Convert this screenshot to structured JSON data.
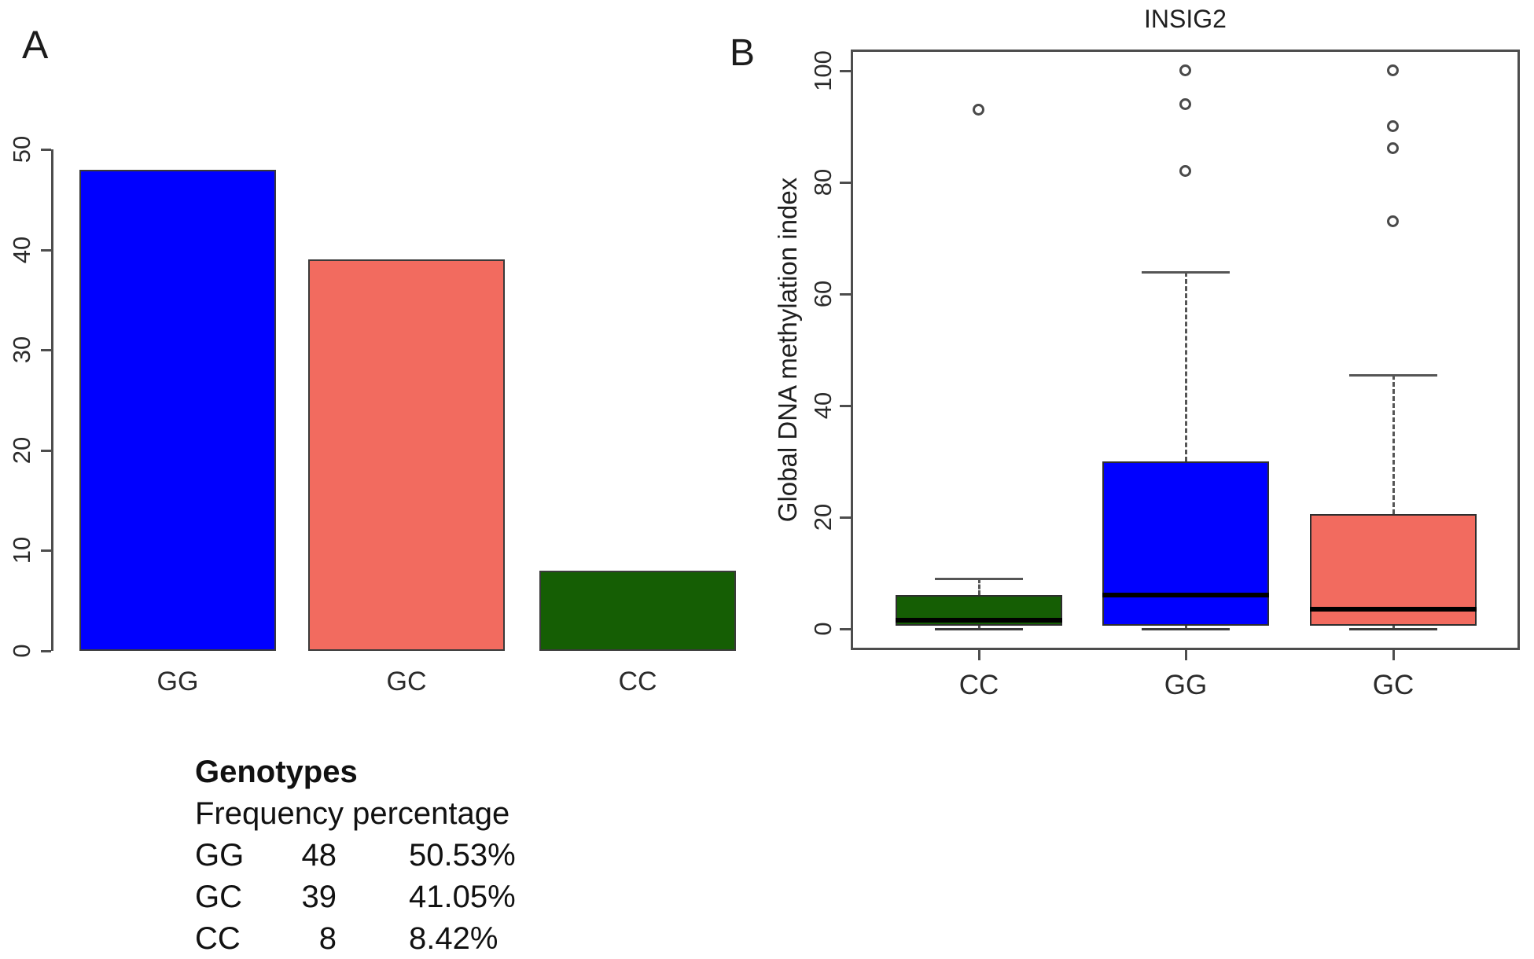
{
  "panels": {
    "a_label": "A",
    "b_label": "B"
  },
  "colors": {
    "blue": "#0000ff",
    "salmon": "#f26b5f",
    "dark_green": "#155e04",
    "axis": "#4d4d4d",
    "text": "#1a1a1a"
  },
  "chart_data": [
    {
      "type": "bar",
      "panel": "A",
      "title": "",
      "xlabel": "",
      "ylabel": "",
      "categories": [
        "GG",
        "GC",
        "CC"
      ],
      "values": [
        48,
        39,
        8
      ],
      "colors": [
        "#0000ff",
        "#f26b5f",
        "#155e04"
      ],
      "ylim": [
        0,
        50
      ],
      "yticks": [
        0,
        10,
        20,
        30,
        40,
        50
      ],
      "grid": false,
      "ytick_label_rotation": 90,
      "legend_position": "none"
    },
    {
      "type": "boxplot",
      "panel": "B",
      "title": "INSIG2",
      "xlabel": "",
      "ylabel": "Global DNA methylation index",
      "categories": [
        "CC",
        "GG",
        "GC"
      ],
      "ylim": [
        0,
        100
      ],
      "yticks": [
        0,
        20,
        40,
        60,
        80,
        100
      ],
      "grid": false,
      "ytick_label_rotation": 90,
      "series": [
        {
          "name": "CC",
          "color": "#155e04",
          "whisker_low": 0,
          "q1": 0.5,
          "median": 1.5,
          "q3": 6,
          "whisker_high": 9,
          "outliers": [
            93
          ]
        },
        {
          "name": "GG",
          "color": "#0000ff",
          "whisker_low": 0,
          "q1": 0.5,
          "median": 6,
          "q3": 30,
          "whisker_high": 64,
          "outliers": [
            100,
            94,
            82
          ]
        },
        {
          "name": "GC",
          "color": "#f26b5f",
          "whisker_low": 0,
          "q1": 0.5,
          "median": 3.5,
          "q3": 20.5,
          "whisker_high": 45.5,
          "outliers": [
            100,
            90,
            86,
            73
          ]
        }
      ]
    }
  ],
  "legend": {
    "title": "Genotypes",
    "subtitle": "Frequency percentage",
    "rows": [
      {
        "genotype": "GG",
        "count": "48",
        "percent": "50.53%"
      },
      {
        "genotype": "GC",
        "count": "39",
        "percent": "41.05%"
      },
      {
        "genotype": "CC",
        "count": "8",
        "percent": "8.42%"
      }
    ]
  }
}
